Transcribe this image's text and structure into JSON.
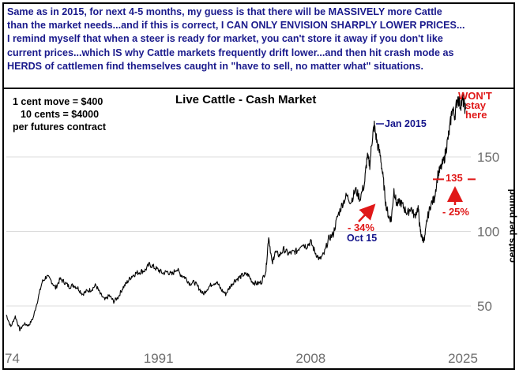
{
  "commentary": [
    "Same as in 2015, for next 4-5 months, my guess is that there will be MASSIVELY more Cattle",
    "than the market needs...and if this is correct, I CAN ONLY ENVISION SHARPLY LOWER PRICES...",
    "I remind myself that when a steer is ready for market, you can't store it away if you don't like",
    "current prices...which IS why Cattle markets frequently drift lower...and then hit crash mode as",
    "HERDS of cattlemen find themselves caught in \"have to sell, no matter what\" situations."
  ],
  "notes": {
    "line1": "1 cent move = $400",
    "line2": "10 cents = $4000",
    "line3": "per futures contract"
  },
  "colors": {
    "commentary": "#1a1a8c",
    "annotation_blue": "#14148a",
    "annotation_red": "#e01818",
    "series": "#000000",
    "grid": "#dcdcdc"
  },
  "chart_data": {
    "type": "line",
    "title": "Live Cattle - Cash Market",
    "ylabel": "cents per pound",
    "xlabel": "",
    "xlim": [
      1974,
      2027
    ],
    "ylim": [
      25,
      198
    ],
    "x_ticks": [
      "74",
      "1991",
      "2008",
      "2025"
    ],
    "x_tick_values": [
      1974,
      1991,
      2008,
      2025
    ],
    "y_ticks": [
      50,
      100,
      150
    ],
    "grid": "horizontal",
    "series": [
      {
        "x": [
          1974,
          1974.5,
          1975,
          1975.5,
          1976,
          1976.5,
          1977,
          1977.5,
          1978,
          1978.5,
          1979,
          1979.5,
          1980,
          1980.5,
          1981,
          1981.5,
          1982,
          1982.5,
          1983,
          1983.5,
          1984,
          1984.5,
          1985,
          1985.5,
          1986,
          1986.5,
          1987,
          1987.5,
          1988,
          1988.5,
          1989,
          1989.5,
          1990,
          1990.5,
          1991,
          1991.5,
          1992,
          1992.5,
          1993,
          1993.5,
          1994,
          1994.5,
          1995,
          1995.5,
          1996,
          1996.5,
          1997,
          1997.5,
          1998,
          1998.5,
          1999,
          1999.5,
          2000,
          2000.5,
          2001,
          2001.5,
          2002,
          2002.5,
          2003,
          2003.3,
          2003.7,
          2004,
          2004.5,
          2005,
          2005.5,
          2006,
          2006.5,
          2007,
          2007.5,
          2008,
          2008.5,
          2009,
          2009.5,
          2010,
          2010.5,
          2011,
          2011.5,
          2012,
          2012.5,
          2013,
          2013.5,
          2014,
          2014.3,
          2014.6,
          2014.9,
          2015.1,
          2015.4,
          2015.8,
          2016.1,
          2016.4,
          2016.7,
          2017,
          2017.3,
          2017.6,
          2018,
          2018.4,
          2018.8,
          2019.2,
          2019.6,
          2020,
          2020.2,
          2020.4,
          2020.7,
          2021,
          2021.4,
          2021.8,
          2022.2,
          2022.5,
          2022.9,
          2023.2,
          2023.5,
          2023.8,
          2024.1,
          2024.4,
          2024.7,
          2025,
          2025.3
        ],
        "values": [
          44,
          36,
          43,
          34,
          38,
          37,
          42,
          54,
          66,
          70,
          67,
          62,
          68,
          66,
          63,
          64,
          62,
          58,
          60,
          61,
          64,
          58,
          54,
          57,
          53,
          56,
          62,
          66,
          70,
          72,
          73,
          74,
          78,
          76,
          74,
          72,
          73,
          71,
          75,
          71,
          69,
          65,
          66,
          62,
          58,
          62,
          65,
          66,
          61,
          58,
          63,
          67,
          69,
          71,
          71,
          66,
          65,
          66,
          74,
          97,
          78,
          86,
          84,
          88,
          85,
          86,
          87,
          92,
          90,
          93,
          86,
          81,
          85,
          95,
          98,
          110,
          118,
          124,
          120,
          128,
          122,
          132,
          150,
          145,
          164,
          171,
          160,
          150,
          135,
          118,
          110,
          108,
          128,
          118,
          120,
          116,
          112,
          116,
          110,
          116,
          102,
          96,
          94,
          108,
          118,
          122,
          138,
          142,
          148,
          158,
          168,
          182,
          178,
          190,
          185,
          188,
          182
        ]
      }
    ],
    "annotations": {
      "peak_label": "Jan 2015",
      "drop_pct": "- 34%",
      "drop_date": "Oct 15",
      "level_label": "135",
      "level_value": 135,
      "future_drop": "- 25%",
      "wont_1": "WON'T",
      "wont_2": "stay",
      "wont_3": "here"
    }
  }
}
